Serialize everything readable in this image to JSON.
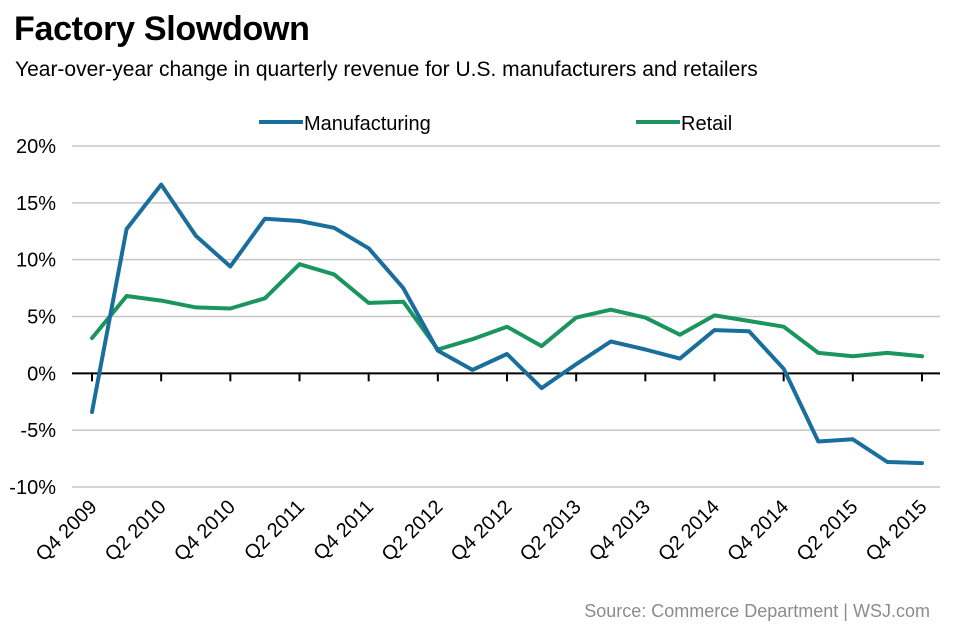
{
  "header": {
    "title": "Factory Slowdown",
    "subtitle": "Year-over-year change in quarterly revenue for U.S. manufacturers and retailers"
  },
  "footer": {
    "source": "Source: Commerce Department  |  WSJ.com"
  },
  "chart_data": {
    "type": "line",
    "title": "Factory Slowdown",
    "subtitle": "Year-over-year change in quarterly revenue for U.S. manufacturers and retailers",
    "xlabel": "",
    "ylabel": "",
    "ylim": [
      -10,
      20
    ],
    "yticks": [
      20,
      15,
      10,
      5,
      0,
      -5,
      -10
    ],
    "ytick_labels": [
      "20%",
      "15%",
      "10%",
      "5%",
      "0%",
      "-5%",
      "-10%"
    ],
    "x": [
      "Q4 2009",
      "Q1 2010",
      "Q2 2010",
      "Q3 2010",
      "Q4 2010",
      "Q1 2011",
      "Q2 2011",
      "Q3 2011",
      "Q4 2011",
      "Q1 2012",
      "Q2 2012",
      "Q3 2012",
      "Q4 2012",
      "Q1 2013",
      "Q2 2013",
      "Q3 2013",
      "Q4 2013",
      "Q1 2014",
      "Q2 2014",
      "Q3 2014",
      "Q4 2014",
      "Q1 2015",
      "Q2 2015",
      "Q3 2015",
      "Q4 2015"
    ],
    "xtick_labels": [
      "Q4 2009",
      "Q2 2010",
      "Q4 2010",
      "Q2 2011",
      "Q4 2011",
      "Q2 2012",
      "Q4 2012",
      "Q2 2013",
      "Q4 2013",
      "Q2 2014",
      "Q4 2014",
      "Q2 2015",
      "Q4 2015"
    ],
    "grid": true,
    "legend_position": "top-center",
    "series": [
      {
        "name": "Manufacturing",
        "color": "#1a6e9b",
        "values": [
          -3.4,
          12.7,
          16.6,
          12.1,
          9.4,
          13.6,
          13.4,
          12.8,
          11.0,
          7.5,
          2.0,
          0.3,
          1.7,
          -1.3,
          0.8,
          2.8,
          2.1,
          1.3,
          3.8,
          3.7,
          0.4,
          -6.0,
          -5.8,
          -7.8,
          -7.9
        ]
      },
      {
        "name": "Retail",
        "color": "#1a955e",
        "values": [
          3.1,
          6.8,
          6.4,
          5.8,
          5.7,
          6.6,
          9.6,
          8.7,
          6.2,
          6.3,
          2.1,
          3.0,
          4.1,
          2.4,
          4.9,
          5.6,
          4.9,
          3.4,
          5.1,
          4.6,
          4.1,
          1.8,
          1.5,
          1.8,
          1.5
        ]
      }
    ]
  }
}
